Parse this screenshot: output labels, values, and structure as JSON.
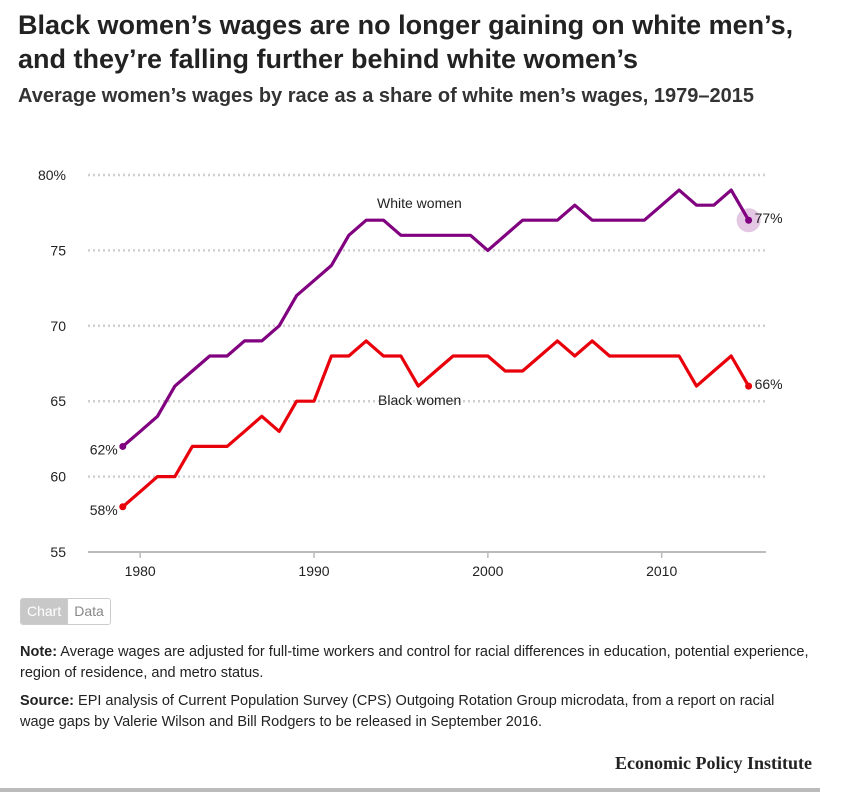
{
  "header": {
    "title": "Black women’s wages are no longer gaining on white men’s, and they’re falling further behind white women’s",
    "subtitle": "Average women’s wages by race as a share of white men’s wages, 1979–2015"
  },
  "tabs": [
    {
      "label": "Chart",
      "active": true
    },
    {
      "label": "Data",
      "active": false
    }
  ],
  "notes": {
    "note_label": "Note:",
    "note_text": " Average wages are adjusted for full-time workers and control for racial differences in education, potential experience, region of residence, and metro status.",
    "source_label": "Source:",
    "source_text": " EPI analysis of Current Population Survey (CPS) Outgoing Rotation Group microdata, from a report on racial wage gaps by Valerie Wilson and Bill Rodgers to be released in September 2016."
  },
  "brand": "Economic Policy Institute",
  "chart_data": {
    "type": "line",
    "title": "Black women’s wages are no longer gaining on white men’s, and they’re falling further behind white women’s",
    "subtitle": "Average women’s wages by race as a share of white men’s wages, 1979–2015",
    "xlabel": "",
    "ylabel": "",
    "x": [
      1979,
      1980,
      1981,
      1982,
      1983,
      1984,
      1985,
      1986,
      1987,
      1988,
      1989,
      1990,
      1991,
      1992,
      1993,
      1994,
      1995,
      1996,
      1997,
      1998,
      1999,
      2000,
      2001,
      2002,
      2003,
      2004,
      2005,
      2006,
      2007,
      2008,
      2009,
      2010,
      2011,
      2012,
      2013,
      2014,
      2015
    ],
    "xlim": [
      1977,
      2016
    ],
    "ylim": [
      55,
      80
    ],
    "xticks": [
      1980,
      1990,
      2000,
      2010
    ],
    "yticks": [
      55,
      60,
      65,
      70,
      75,
      80
    ],
    "ytick_labels": [
      "55",
      "60",
      "65",
      "70",
      "75",
      "80%"
    ],
    "grid": true,
    "series": [
      {
        "name": "White women",
        "color": "#800080",
        "values": [
          62,
          63,
          64,
          66,
          67,
          68,
          68,
          69,
          69,
          70,
          72,
          73,
          74,
          76,
          77,
          77,
          76,
          76,
          76,
          76,
          76,
          75,
          76,
          77,
          77,
          77,
          78,
          77,
          77,
          77,
          77,
          78,
          79,
          78,
          78,
          79,
          77
        ],
        "start_label": "62%",
        "end_label": "77%"
      },
      {
        "name": "Black women",
        "color": "#e8000b",
        "values": [
          58,
          59,
          60,
          60,
          62,
          62,
          62,
          63,
          64,
          63,
          65,
          65,
          68,
          68,
          69,
          68,
          68,
          66,
          67,
          68,
          68,
          68,
          67,
          67,
          68,
          69,
          68,
          69,
          68,
          68,
          68,
          68,
          68,
          66,
          67,
          68,
          66
        ],
        "start_label": "58%",
        "end_label": "66%"
      }
    ]
  }
}
